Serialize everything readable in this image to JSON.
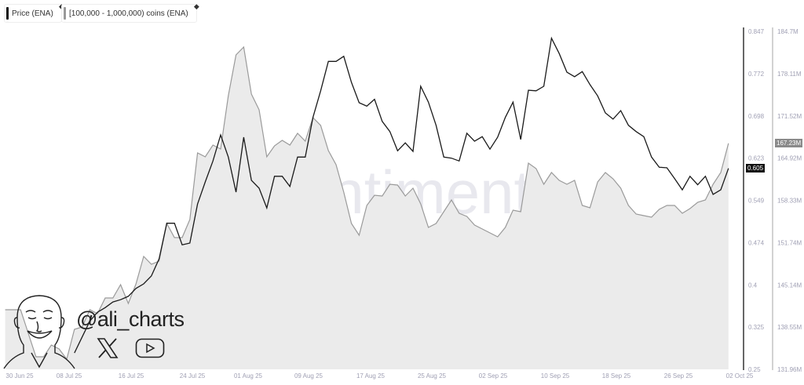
{
  "legend": [
    {
      "label": "Price (ENA)",
      "color": "#111111"
    },
    {
      "label": "[100,000 - 1,000,000) coins (ENA)",
      "color": "#999999"
    }
  ],
  "watermark": "santiment",
  "branding": {
    "handle": "@ali_charts",
    "icons": [
      "x-logo-icon",
      "youtube-icon"
    ]
  },
  "chart_data": {
    "type": "line",
    "x": [
      "2025-06-30",
      "2025-07-01",
      "2025-07-02",
      "2025-07-03",
      "2025-07-04",
      "2025-07-05",
      "2025-07-06",
      "2025-07-07",
      "2025-07-08",
      "2025-07-09",
      "2025-07-10",
      "2025-07-11",
      "2025-07-12",
      "2025-07-13",
      "2025-07-14",
      "2025-07-15",
      "2025-07-16",
      "2025-07-17",
      "2025-07-18",
      "2025-07-19",
      "2025-07-20",
      "2025-07-21",
      "2025-07-22",
      "2025-07-23",
      "2025-07-24",
      "2025-07-25",
      "2025-07-26",
      "2025-07-27",
      "2025-07-28",
      "2025-07-29",
      "2025-07-30",
      "2025-07-31",
      "2025-08-01",
      "2025-08-02",
      "2025-08-03",
      "2025-08-04",
      "2025-08-05",
      "2025-08-06",
      "2025-08-07",
      "2025-08-08",
      "2025-08-09",
      "2025-08-10",
      "2025-08-11",
      "2025-08-12",
      "2025-08-13",
      "2025-08-14",
      "2025-08-15",
      "2025-08-16",
      "2025-08-17",
      "2025-08-18",
      "2025-08-19",
      "2025-08-20",
      "2025-08-21",
      "2025-08-22",
      "2025-08-23",
      "2025-08-24",
      "2025-08-25",
      "2025-08-26",
      "2025-08-27",
      "2025-08-28",
      "2025-08-29",
      "2025-08-30",
      "2025-08-31",
      "2025-09-01",
      "2025-09-02",
      "2025-09-03",
      "2025-09-04",
      "2025-09-05",
      "2025-09-06",
      "2025-09-07",
      "2025-09-08",
      "2025-09-09",
      "2025-09-10",
      "2025-09-11",
      "2025-09-12",
      "2025-09-13",
      "2025-09-14",
      "2025-09-15",
      "2025-09-16",
      "2025-09-17",
      "2025-09-18",
      "2025-09-19",
      "2025-09-20",
      "2025-09-21",
      "2025-09-22",
      "2025-09-23",
      "2025-09-24",
      "2025-09-25",
      "2025-09-26",
      "2025-09-27",
      "2025-09-28",
      "2025-09-29",
      "2025-09-30",
      "2025-10-01",
      "2025-10-02"
    ],
    "x_ticks": [
      "30 Jun 25",
      "08 Jul 25",
      "16 Jul 25",
      "24 Jul 25",
      "01 Aug 25",
      "09 Aug 25",
      "17 Aug 25",
      "25 Aug 25",
      "02 Sep 25",
      "10 Sep 25",
      "18 Sep 25",
      "26 Sep 25",
      "02 Oct 25"
    ],
    "series": [
      {
        "name": "Price (ENA)",
        "axis": "left",
        "color": "#111111",
        "style": "line",
        "values": [
          null,
          null,
          null,
          null,
          null,
          null,
          null,
          null,
          null,
          0.279,
          0.307,
          0.335,
          0.351,
          0.359,
          0.369,
          0.373,
          0.379,
          0.393,
          0.401,
          0.415,
          0.445,
          0.508,
          0.508,
          0.47,
          0.473,
          0.542,
          0.581,
          0.618,
          0.664,
          0.625,
          0.563,
          0.66,
          0.584,
          0.57,
          0.535,
          0.591,
          0.591,
          0.573,
          0.625,
          0.625,
          0.695,
          0.742,
          0.794,
          0.794,
          0.803,
          0.757,
          0.721,
          0.715,
          0.727,
          0.688,
          0.67,
          0.636,
          0.65,
          0.635,
          0.75,
          0.722,
          0.681,
          0.625,
          0.623,
          0.618,
          0.667,
          0.653,
          0.661,
          0.639,
          0.66,
          0.695,
          0.722,
          0.656,
          0.743,
          0.742,
          0.75,
          0.835,
          0.808,
          0.775,
          0.767,
          0.776,
          0.753,
          0.733,
          0.703,
          0.692,
          0.707,
          0.681,
          0.67,
          0.661,
          0.625,
          0.607,
          0.606,
          0.587,
          0.567,
          0.591,
          0.576,
          0.591,
          0.559,
          0.567,
          0.605
        ]
      },
      {
        "name": "[100,000 - 1,000,000) coins (ENA)",
        "axis": "right",
        "color": "#999999",
        "style": "area",
        "values": [
          141.26,
          141.26,
          141.26,
          137.59,
          133.92,
          133.92,
          135.75,
          135.14,
          133.55,
          138.2,
          138.57,
          141.26,
          140.65,
          143.09,
          143.09,
          145.17,
          142.24,
          145.3,
          149.58,
          148.36,
          148.85,
          154.72,
          152.52,
          152.52,
          155.33,
          165.73,
          165.12,
          166.96,
          166.34,
          174.67,
          181.03,
          182.25,
          174.91,
          172.46,
          165.12,
          166.83,
          167.69,
          166.96,
          168.79,
          167.57,
          171.24,
          170.02,
          166.1,
          163.9,
          159.61,
          154.72,
          152.88,
          157.53,
          159.12,
          159.0,
          160.84,
          160.72,
          159.0,
          160.23,
          157.78,
          154.11,
          154.72,
          156.55,
          158.39,
          156.31,
          155.82,
          154.47,
          153.86,
          153.25,
          152.64,
          154.11,
          156.8,
          156.55,
          164.14,
          163.29,
          160.84,
          162.67,
          161.45,
          160.84,
          161.45,
          157.53,
          157.17,
          161.21,
          162.67,
          161.69,
          160.23,
          157.53,
          156.19,
          155.94,
          155.7,
          156.92,
          157.53,
          157.53,
          156.31,
          157.04,
          158.02,
          158.39,
          160.84,
          162.67,
          167.23
        ]
      }
    ],
    "y_left": {
      "ticks": [
        "0.847",
        "0.772",
        "0.698",
        "0.623",
        "0.549",
        "0.474",
        "0.4",
        "0.325",
        "0.25"
      ],
      "range": [
        0.25,
        0.847
      ],
      "current": "0.605"
    },
    "y_right": {
      "ticks": [
        "184.7M",
        "178.11M",
        "171.52M",
        "164.92M",
        "158.33M",
        "151.74M",
        "145.14M",
        "138.55M",
        "131.96M"
      ],
      "range": [
        131.96,
        184.7
      ],
      "current": "167.23M"
    },
    "grid": false,
    "legend_position": "top-left"
  }
}
